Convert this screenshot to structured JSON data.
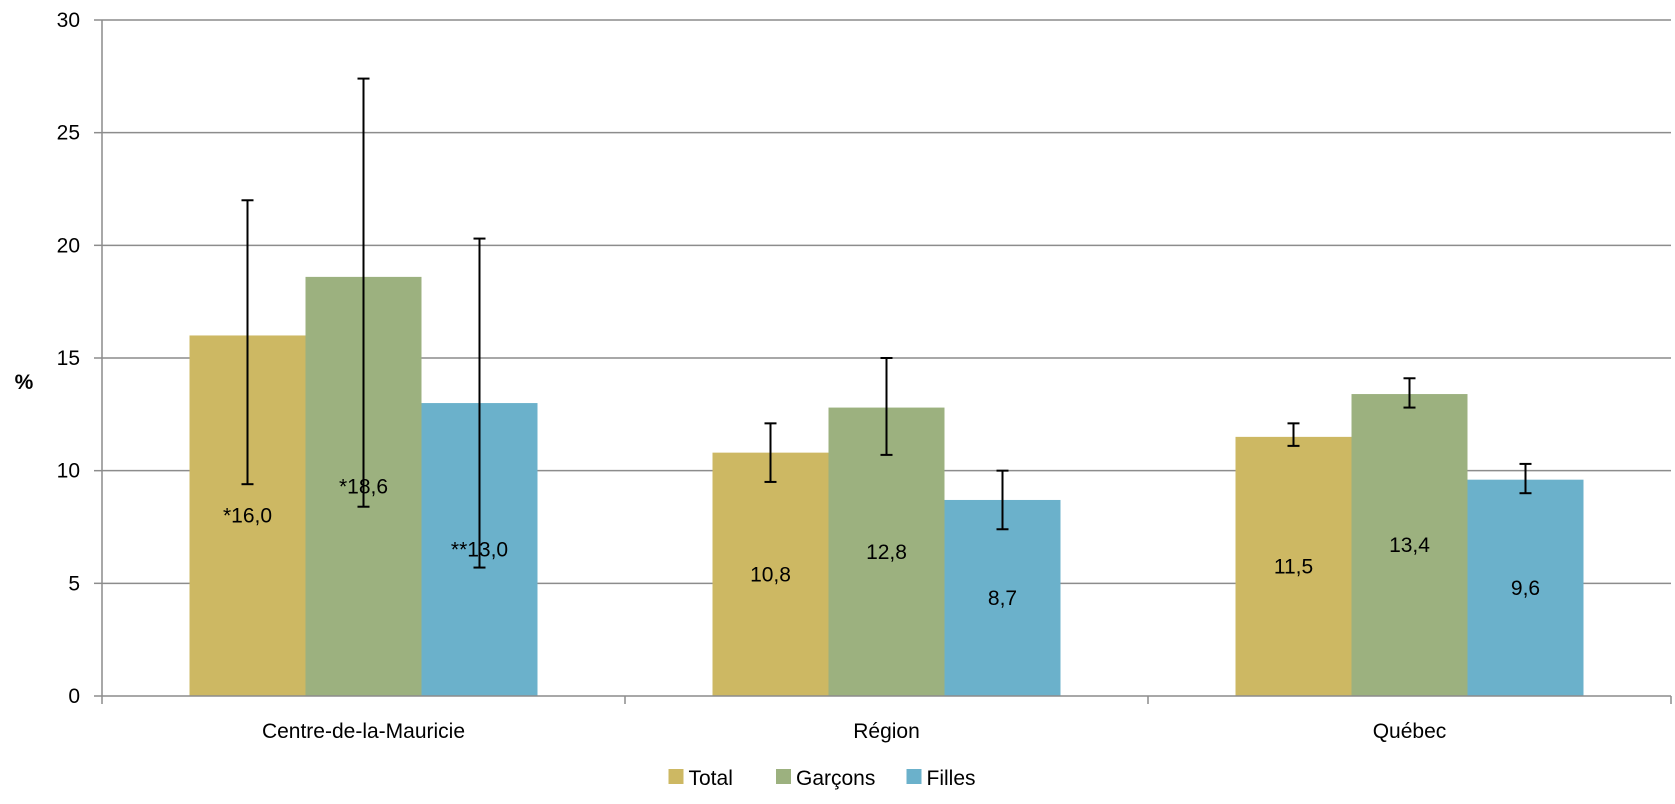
{
  "chart_data": {
    "type": "bar",
    "title": "",
    "xlabel": "",
    "ylabel": "%",
    "ylim": [
      0,
      30
    ],
    "yticks": [
      "0",
      "5",
      "10",
      "15",
      "20",
      "25",
      "30"
    ],
    "grid": true,
    "legend_position": "bottom",
    "categories": [
      "Centre-de-la-Mauricie",
      "Région",
      "Québec"
    ],
    "series": [
      {
        "name": "Total",
        "color": "#CDB863",
        "values": [
          16.0,
          10.8,
          11.5
        ],
        "labels": [
          "*16,0",
          "10,8",
          "11,5"
        ],
        "error_low": [
          9.4,
          9.5,
          11.1
        ],
        "error_high": [
          22.0,
          12.1,
          12.1
        ]
      },
      {
        "name": "Garçons",
        "color": "#9CB17F",
        "values": [
          18.6,
          12.8,
          13.4
        ],
        "labels": [
          "*18,6",
          "12,8",
          "13,4"
        ],
        "error_low": [
          8.4,
          10.7,
          12.8
        ],
        "error_high": [
          27.4,
          15.0,
          14.1
        ]
      },
      {
        "name": "Filles",
        "color": "#6BB1CB",
        "values": [
          13.0,
          8.7,
          9.6
        ],
        "labels": [
          "**13,0",
          "8,7",
          "9,6"
        ],
        "error_low": [
          5.7,
          7.4,
          9.0
        ],
        "error_high": [
          20.3,
          10.0,
          10.3
        ]
      }
    ]
  }
}
